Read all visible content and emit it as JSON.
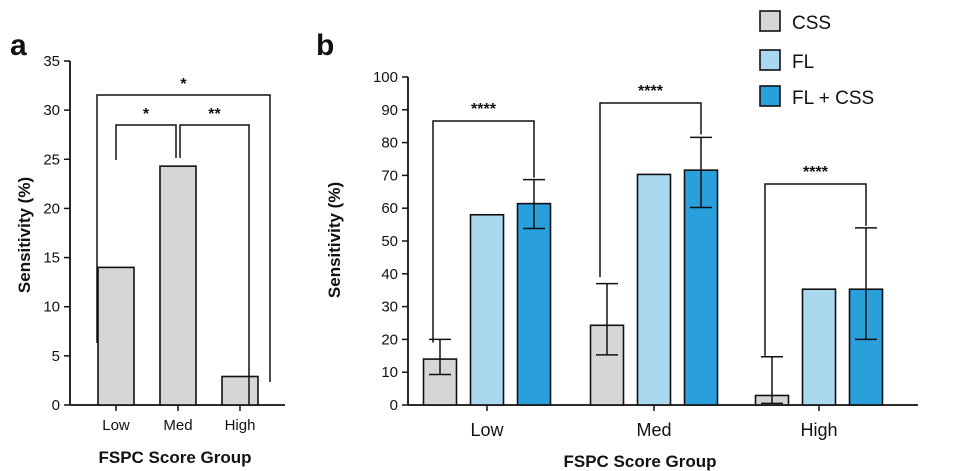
{
  "colors": {
    "CSS": "#d6d6d6",
    "FL": "#a9d8ef",
    "FL + CSS": "#29a0dc",
    "stroke": "#111111"
  },
  "chart_data": [
    {
      "panel": "a",
      "type": "bar",
      "xlabel": "FSPC Score Group",
      "ylabel": "Sensitivity  (%)",
      "ylim": [
        0,
        35
      ],
      "yticks": [
        "0",
        "5",
        "10",
        "15",
        "20",
        "25",
        "30",
        "35"
      ],
      "categories": [
        "Low",
        "Med",
        "High"
      ],
      "values": [
        14,
        24.3,
        2.9
      ],
      "significance": [
        {
          "from": "Low",
          "to": "Med",
          "label": "*"
        },
        {
          "from": "Med",
          "to": "High",
          "label": "**"
        },
        {
          "from": "Low",
          "to": "High",
          "label": "*"
        }
      ]
    },
    {
      "panel": "b",
      "type": "bar",
      "xlabel": "FSPC Score Group",
      "ylabel": "Sensitivity  (%)",
      "ylim": [
        0,
        100
      ],
      "yticks": [
        "0",
        "10",
        "20",
        "30",
        "40",
        "50",
        "60",
        "70",
        "80",
        "90",
        "100"
      ],
      "categories": [
        "Low",
        "Med",
        "High"
      ],
      "legend_position": "top-right",
      "series": [
        {
          "name": "CSS",
          "values": [
            14,
            24.3,
            2.9
          ],
          "err_low": [
            9.3,
            15.3,
            0.5
          ],
          "err_high": [
            20,
            37,
            14.7
          ]
        },
        {
          "name": "FL",
          "values": [
            58,
            70.3,
            35.3
          ]
        },
        {
          "name": "FL + CSS",
          "values": [
            61.4,
            71.6,
            35.3
          ],
          "err_low": [
            53.8,
            60.2,
            20
          ],
          "err_high": [
            68.7,
            81.6,
            54
          ]
        }
      ],
      "significance": [
        {
          "category": "Low",
          "from": "CSS",
          "to": "FL + CSS",
          "label": "****"
        },
        {
          "category": "Med",
          "from": "CSS",
          "to": "FL + CSS",
          "label": "****"
        },
        {
          "category": "High",
          "from": "CSS",
          "to": "FL + CSS",
          "label": "****"
        }
      ]
    }
  ]
}
